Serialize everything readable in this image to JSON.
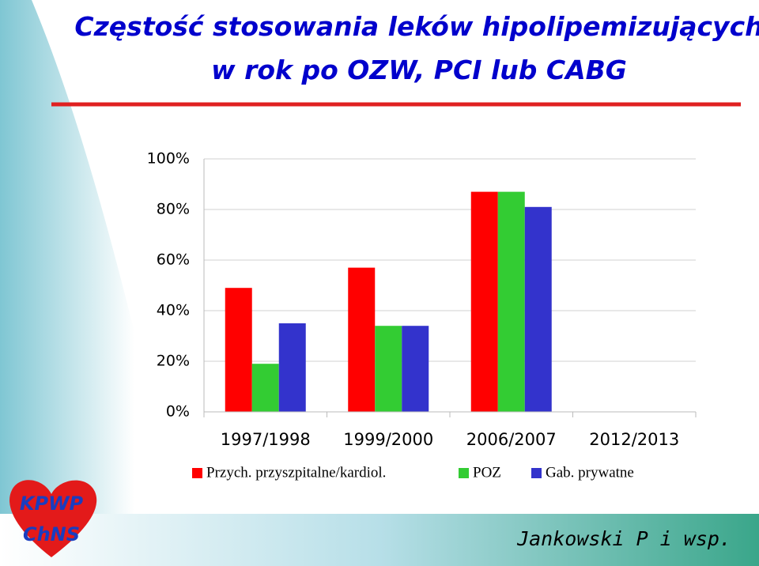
{
  "chart_data": {
    "type": "bar",
    "title": [
      "Częstość stosowania leków hipolipemizujących",
      "w rok po OZW, PCI lub CABG"
    ],
    "categories": [
      "1997/1998",
      "1999/2000",
      "2006/2007",
      "2012/2013"
    ],
    "series": [
      {
        "name": "Przych. przyszpitalne/kardiol.",
        "color": "#ff0000",
        "values": [
          49,
          57,
          87,
          null
        ]
      },
      {
        "name": "POZ",
        "color": "#33cc33",
        "values": [
          19,
          34,
          87,
          null
        ]
      },
      {
        "name": "Gab. prywatne",
        "color": "#3333cc",
        "values": [
          35,
          34,
          81,
          null
        ]
      }
    ],
    "ylim": [
      0,
      100
    ],
    "yticks": [
      {
        "value": 0,
        "label": "0%"
      },
      {
        "value": 20,
        "label": "20%"
      },
      {
        "value": 40,
        "label": "40%"
      },
      {
        "value": 60,
        "label": "60%"
      },
      {
        "value": 80,
        "label": "80%"
      },
      {
        "value": 100,
        "label": "100%"
      }
    ],
    "grid": true,
    "legend": "bottom"
  },
  "logo": [
    "KPWP",
    "ChNS"
  ],
  "footer": "Jankowski P i wsp."
}
